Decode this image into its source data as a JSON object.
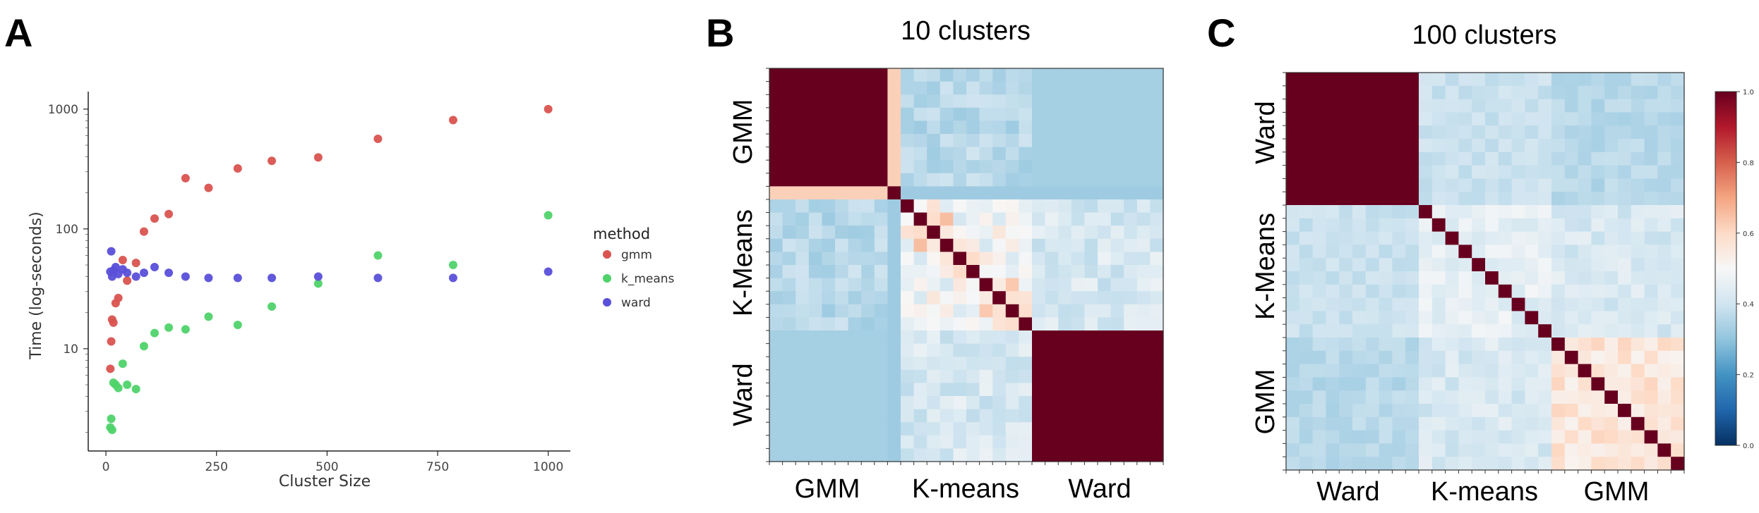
{
  "panels": {
    "a_letter": "A",
    "b_letter": "B",
    "c_letter": "C"
  },
  "colors": {
    "gmm": "#d9534f",
    "k_means": "#4fd36a",
    "ward": "#5a4fd9",
    "heat_low": "#053061",
    "heat_mid": "#f7f7f7",
    "heat_high": "#67001f"
  },
  "chart_data": [
    {
      "type": "scatter",
      "xlabel": "Cluster Size",
      "ylabel": "Time (log-seconds)",
      "y_scale": "log",
      "xlim": [
        -40,
        1050
      ],
      "ylim": [
        1.4,
        1400
      ],
      "x_ticks": [
        "0",
        "250",
        "500",
        "750",
        "1000"
      ],
      "y_ticks": [
        "10",
        "100",
        "1000"
      ],
      "legend_title": "method",
      "legend_position": "right",
      "series": [
        {
          "name": "gmm",
          "points": [
            [
              10,
              6.8
            ],
            [
              12,
              11.5
            ],
            [
              14,
              17.5
            ],
            [
              17,
              16.5
            ],
            [
              22,
              24
            ],
            [
              28,
              26.5
            ],
            [
              38,
              55
            ],
            [
              48,
              37
            ],
            [
              68,
              52
            ],
            [
              86,
              95
            ],
            [
              110,
              122
            ],
            [
              142,
              133
            ],
            [
              180,
              265
            ],
            [
              232,
              220
            ],
            [
              298,
              320
            ],
            [
              375,
              370
            ],
            [
              480,
              395
            ],
            [
              615,
              565
            ],
            [
              785,
              810
            ],
            [
              1000,
              1000
            ]
          ]
        },
        {
          "name": "k_means",
          "points": [
            [
              10,
              2.2
            ],
            [
              12,
              2.6
            ],
            [
              14,
              2.1
            ],
            [
              17,
              5.2
            ],
            [
              22,
              5.0
            ],
            [
              28,
              4.7
            ],
            [
              38,
              7.5
            ],
            [
              48,
              5.0
            ],
            [
              68,
              4.6
            ],
            [
              86,
              10.5
            ],
            [
              110,
              13.5
            ],
            [
              142,
              15
            ],
            [
              180,
              14.5
            ],
            [
              232,
              18.5
            ],
            [
              298,
              15.8
            ],
            [
              375,
              22.5
            ],
            [
              480,
              35
            ],
            [
              615,
              60
            ],
            [
              785,
              50
            ],
            [
              1000,
              130
            ]
          ]
        },
        {
          "name": "ward",
          "points": [
            [
              10,
              44
            ],
            [
              12,
              65
            ],
            [
              14,
              40
            ],
            [
              17,
              45
            ],
            [
              22,
              48
            ],
            [
              28,
              42
            ],
            [
              38,
              46
            ],
            [
              48,
              43
            ],
            [
              68,
              40
            ],
            [
              86,
              43
            ],
            [
              110,
              48
            ],
            [
              142,
              43
            ],
            [
              180,
              40
            ],
            [
              232,
              39
            ],
            [
              298,
              39
            ],
            [
              375,
              39
            ],
            [
              480,
              40
            ],
            [
              615,
              39
            ],
            [
              785,
              39
            ],
            [
              1000,
              44
            ]
          ]
        }
      ]
    },
    {
      "type": "heatmap",
      "title": "10 clusters",
      "x_groups": [
        "GMM",
        "K-means",
        "Ward"
      ],
      "y_groups": [
        "GMM",
        "K-Means",
        "Ward"
      ],
      "value_range": [
        0,
        1
      ],
      "blocks": {
        "gmm_gmm": 1.0,
        "ward_ward": 1.0,
        "gmm_ward": 0.33,
        "gmm_kmeans_avg": 0.38,
        "kmeans_ward_avg": 0.42,
        "kmeans_kmeans_avg": 0.55,
        "diagonal": 1.0
      }
    },
    {
      "type": "heatmap",
      "title": "100 clusters",
      "x_groups": [
        "Ward",
        "K-means",
        "GMM"
      ],
      "y_groups": [
        "Ward",
        "K-Means",
        "GMM"
      ],
      "value_range": [
        0,
        1
      ],
      "colorbar_ticks": [
        "1.0",
        "0.8",
        "0.6",
        "0.4",
        "0.2",
        "0.0"
      ],
      "blocks": {
        "ward_ward": 1.0,
        "ward_kmeans_avg": 0.38,
        "ward_gmm_avg": 0.36,
        "kmeans_kmeans_avg": 0.45,
        "kmeans_gmm_avg": 0.42,
        "gmm_gmm_avg": 0.55,
        "diagonal": 1.0
      }
    }
  ]
}
